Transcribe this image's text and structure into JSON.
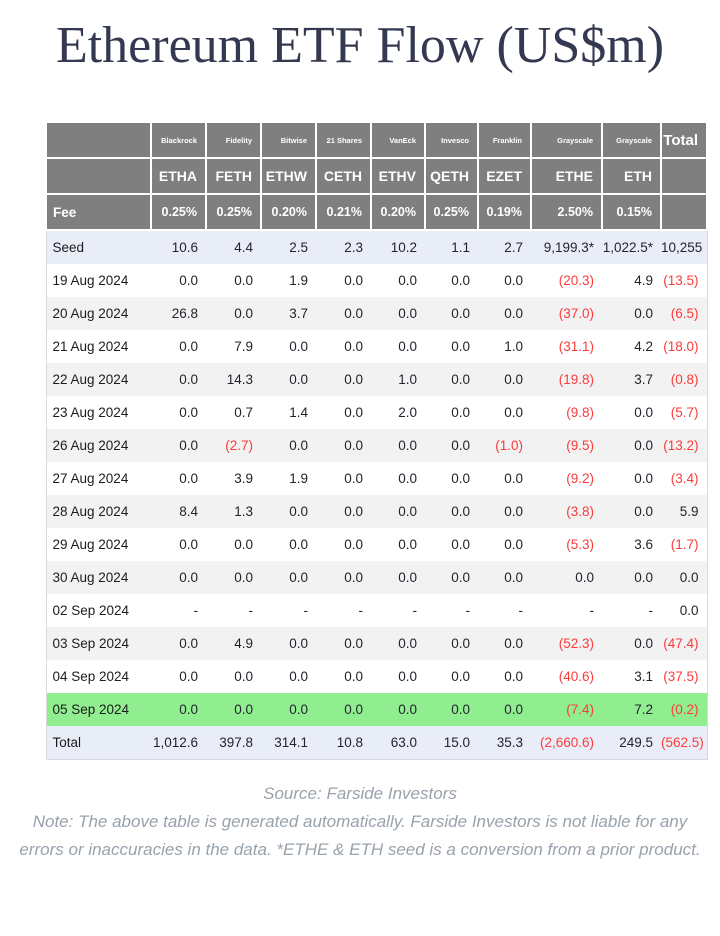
{
  "page_title": "Ethereum ETF Flow (US$m)",
  "colors": {
    "header_bg": "#7f7f7f",
    "header_text": "#ffffff",
    "seed_total_row_bg": "#e9edf8",
    "stripe_row_bg": "#f2f2f2",
    "highlight_row_bg": "#90ee90",
    "negative_text": "#fb3b3b",
    "positive_text": "#23232e",
    "title_text": "#343850",
    "footer_text": "#98a2ac"
  },
  "chart_data": {
    "type": "table",
    "title": "Ethereum ETF Flow (US$m)",
    "units": "US$m",
    "negative_style": "parentheses-red",
    "columns": {
      "issuers": [
        "Blackrock",
        "Fidelity",
        "Bitwise",
        "21 Shares",
        "VanEck",
        "Invesco",
        "Franklin",
        "Grayscale",
        "Grayscale"
      ],
      "tickers": [
        "ETHA",
        "FETH",
        "ETHW",
        "CETH",
        "ETHV",
        "QETH",
        "EZET",
        "ETHE",
        "ETH"
      ],
      "fees": [
        "0.25%",
        "0.25%",
        "0.20%",
        "0.21%",
        "0.20%",
        "0.25%",
        "0.19%",
        "2.50%",
        "0.15%"
      ],
      "fee_row_label": "Fee",
      "total_header": "Total"
    },
    "rows": [
      {
        "label": "Seed",
        "type": "seed",
        "values": [
          "10.6",
          "4.4",
          "2.5",
          "2.3",
          "10.2",
          "1.1",
          "2.7",
          "9,199.3*",
          "1,022.5*",
          "10,255"
        ]
      },
      {
        "label": "19 Aug 2024",
        "type": "date",
        "values": [
          "0.0",
          "0.0",
          "1.9",
          "0.0",
          "0.0",
          "0.0",
          "0.0",
          "(20.3)",
          "4.9",
          "(13.5)"
        ]
      },
      {
        "label": "20 Aug 2024",
        "type": "date",
        "values": [
          "26.8",
          "0.0",
          "3.7",
          "0.0",
          "0.0",
          "0.0",
          "0.0",
          "(37.0)",
          "0.0",
          "(6.5)"
        ]
      },
      {
        "label": "21 Aug 2024",
        "type": "date",
        "values": [
          "0.0",
          "7.9",
          "0.0",
          "0.0",
          "0.0",
          "0.0",
          "1.0",
          "(31.1)",
          "4.2",
          "(18.0)"
        ]
      },
      {
        "label": "22 Aug 2024",
        "type": "date",
        "values": [
          "0.0",
          "14.3",
          "0.0",
          "0.0",
          "1.0",
          "0.0",
          "0.0",
          "(19.8)",
          "3.7",
          "(0.8)"
        ]
      },
      {
        "label": "23 Aug 2024",
        "type": "date",
        "values": [
          "0.0",
          "0.7",
          "1.4",
          "0.0",
          "2.0",
          "0.0",
          "0.0",
          "(9.8)",
          "0.0",
          "(5.7)"
        ]
      },
      {
        "label": "26 Aug 2024",
        "type": "date",
        "values": [
          "0.0",
          "(2.7)",
          "0.0",
          "0.0",
          "0.0",
          "0.0",
          "(1.0)",
          "(9.5)",
          "0.0",
          "(13.2)"
        ]
      },
      {
        "label": "27 Aug 2024",
        "type": "date",
        "values": [
          "0.0",
          "3.9",
          "1.9",
          "0.0",
          "0.0",
          "0.0",
          "0.0",
          "(9.2)",
          "0.0",
          "(3.4)"
        ]
      },
      {
        "label": "28 Aug 2024",
        "type": "date",
        "values": [
          "8.4",
          "1.3",
          "0.0",
          "0.0",
          "0.0",
          "0.0",
          "0.0",
          "(3.8)",
          "0.0",
          "5.9"
        ]
      },
      {
        "label": "29 Aug 2024",
        "type": "date",
        "values": [
          "0.0",
          "0.0",
          "0.0",
          "0.0",
          "0.0",
          "0.0",
          "0.0",
          "(5.3)",
          "3.6",
          "(1.7)"
        ]
      },
      {
        "label": "30 Aug 2024",
        "type": "date",
        "values": [
          "0.0",
          "0.0",
          "0.0",
          "0.0",
          "0.0",
          "0.0",
          "0.0",
          "0.0",
          "0.0",
          "0.0"
        ]
      },
      {
        "label": "02 Sep 2024",
        "type": "date",
        "values": [
          "-",
          "-",
          "-",
          "-",
          "-",
          "-",
          "-",
          "-",
          "-",
          "0.0"
        ]
      },
      {
        "label": "03 Sep 2024",
        "type": "date",
        "values": [
          "0.0",
          "4.9",
          "0.0",
          "0.0",
          "0.0",
          "0.0",
          "0.0",
          "(52.3)",
          "0.0",
          "(47.4)"
        ]
      },
      {
        "label": "04 Sep 2024",
        "type": "date",
        "values": [
          "0.0",
          "0.0",
          "0.0",
          "0.0",
          "0.0",
          "0.0",
          "0.0",
          "(40.6)",
          "3.1",
          "(37.5)"
        ]
      },
      {
        "label": "05 Sep 2024",
        "type": "highlight",
        "values": [
          "0.0",
          "0.0",
          "0.0",
          "0.0",
          "0.0",
          "0.0",
          "0.0",
          "(7.4)",
          "7.2",
          "(0.2)"
        ]
      },
      {
        "label": "Total",
        "type": "total",
        "values": [
          "1,012.6",
          "397.8",
          "314.1",
          "10.8",
          "63.0",
          "15.0",
          "35.3",
          "(2,660.6)",
          "249.5",
          "(562.5)"
        ]
      }
    ]
  },
  "footer": {
    "source": "Source: Farside Investors",
    "note": "Note: The above table is generated automatically. Farside Investors is not liable for any errors or inaccuracies in the data. *ETHE & ETH seed is a conversion from a prior product."
  }
}
